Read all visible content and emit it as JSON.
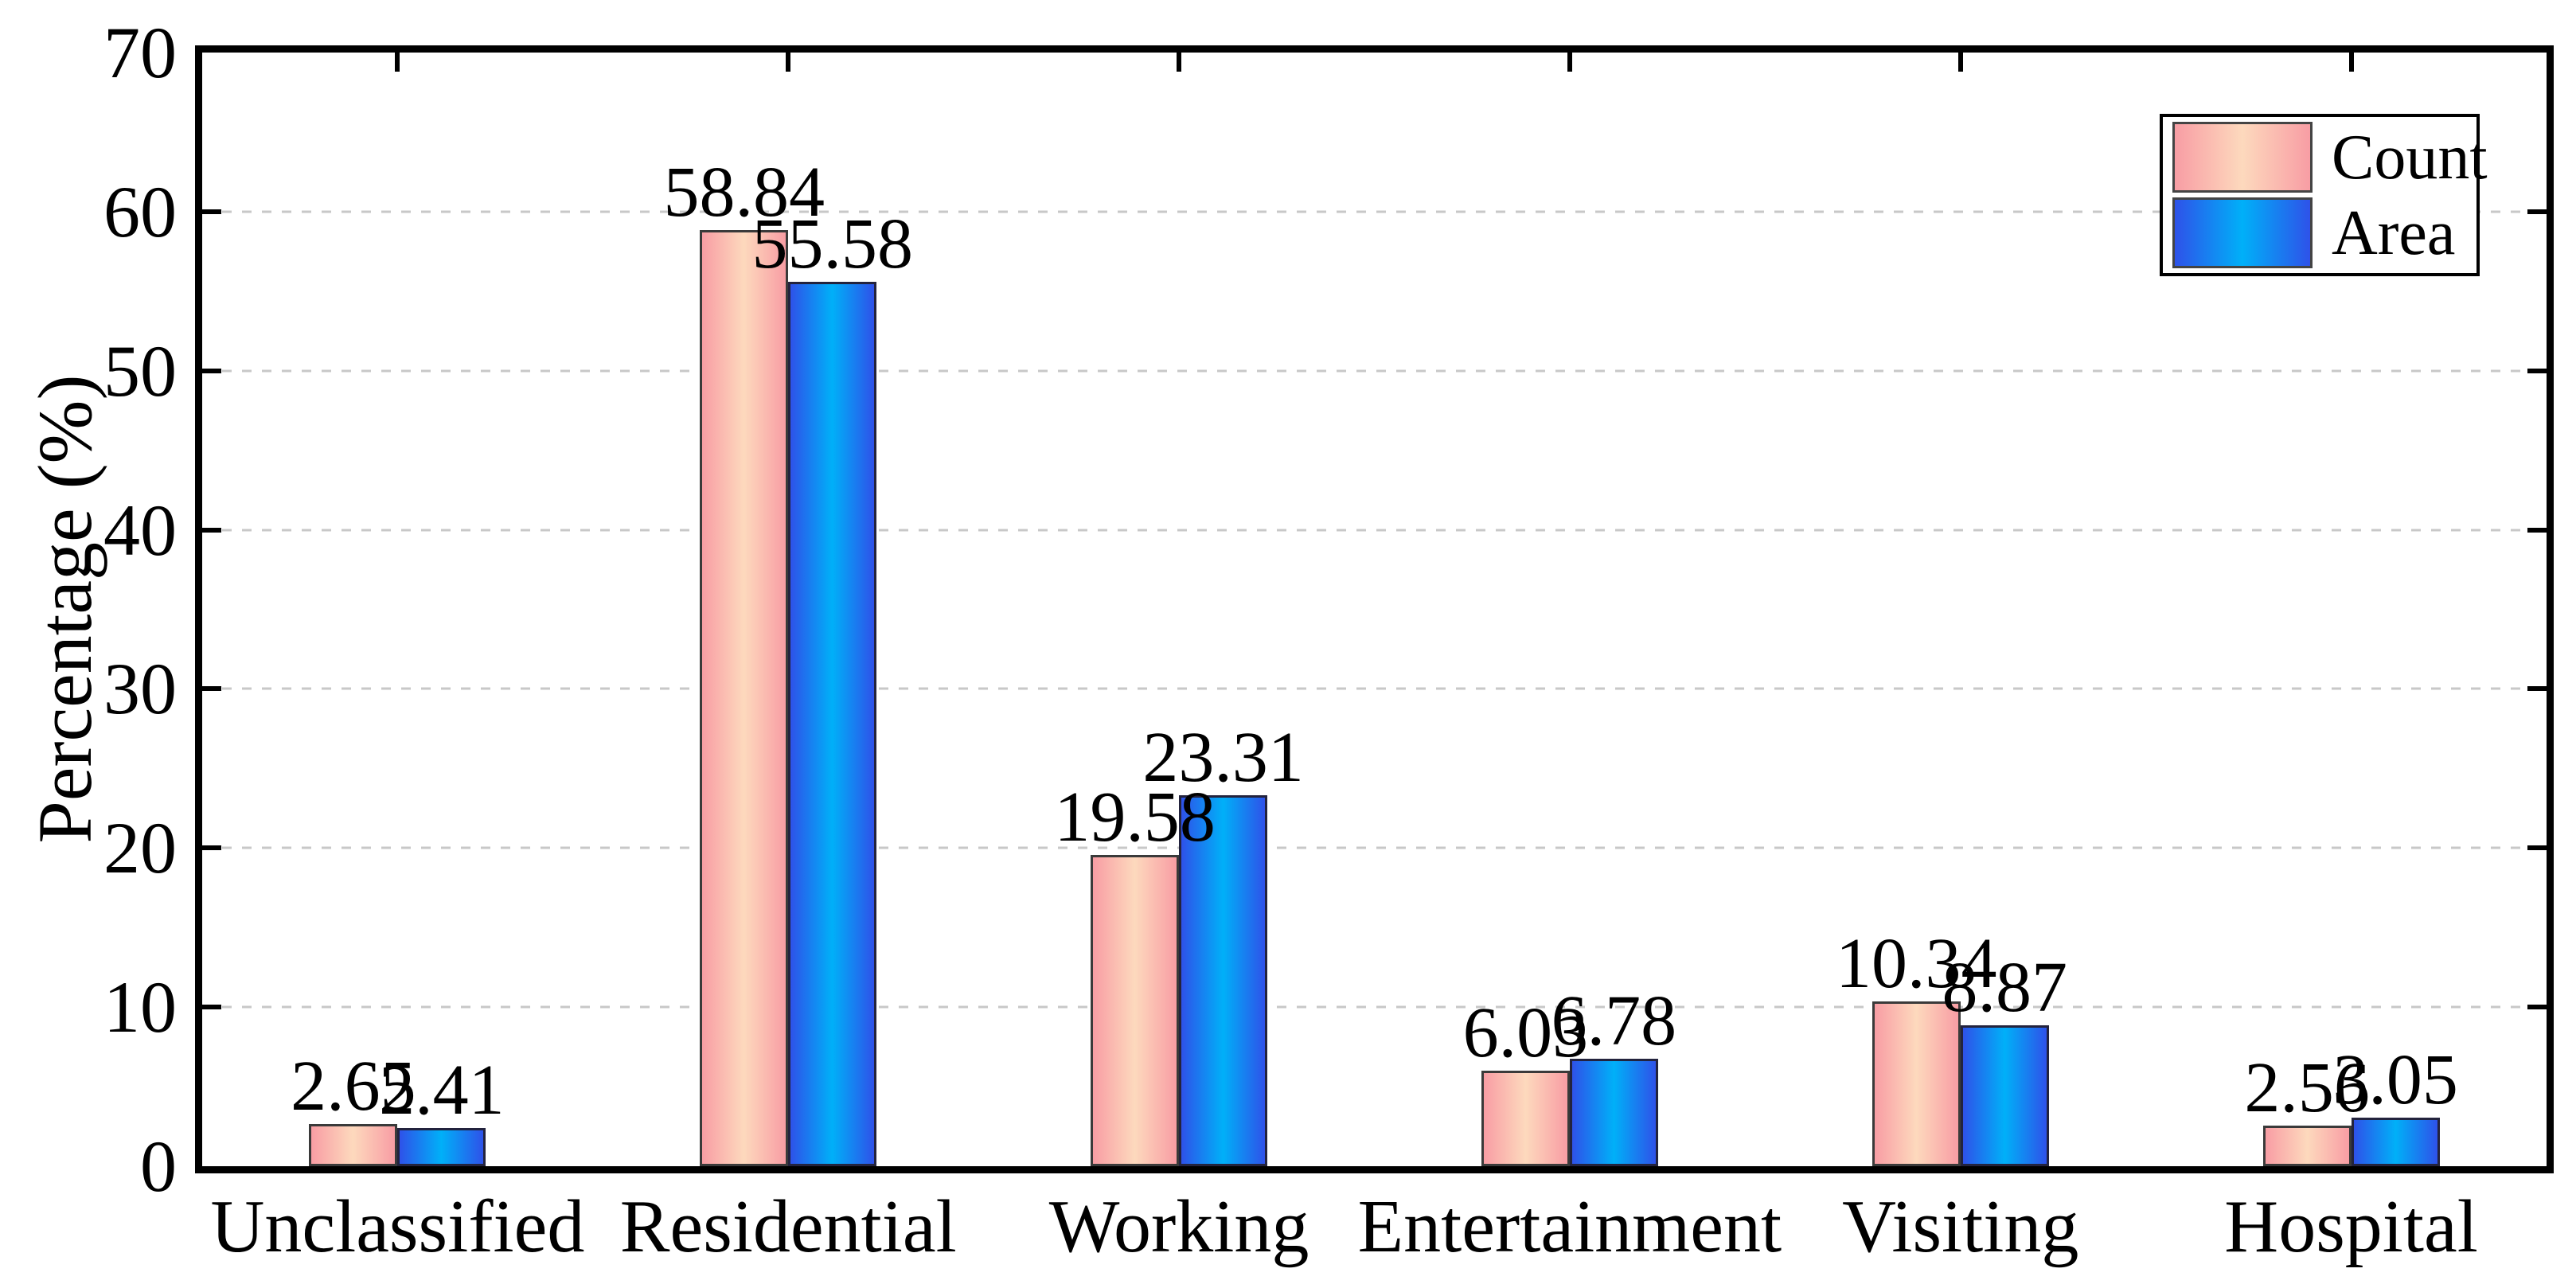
{
  "chart_data": {
    "type": "bar",
    "title": "",
    "categories": [
      "Unclassified",
      "Residential",
      "Working",
      "Entertainment",
      "Visiting",
      "Hospital"
    ],
    "series": [
      {
        "name": "Count",
        "values": [
          2.65,
          58.84,
          19.58,
          6.03,
          10.34,
          2.56
        ],
        "colors": {
          "edge": "#f89da4",
          "mid": "#fdd9bd",
          "border": "#3a3a3a"
        }
      },
      {
        "name": "Area",
        "values": [
          2.41,
          55.58,
          23.31,
          6.78,
          8.87,
          3.05
        ],
        "colors": {
          "edge": "#2e52e9",
          "mid": "#00b0f8",
          "border": "#23233d"
        }
      }
    ],
    "xlabel": "",
    "ylabel": "Percentage (%)",
    "ylim": [
      0,
      70
    ],
    "yticks": [
      0,
      10,
      20,
      30,
      40,
      50,
      60,
      70
    ],
    "value_label_decimals": 2,
    "grid": "horizontal dashed at 10-60",
    "legend_position": "top-right",
    "legend_entries": [
      "Count",
      "Area"
    ]
  },
  "colors": {
    "background": "#ffffff",
    "axis": "#000000",
    "gridline": "#c8c8c8",
    "text": "#000000"
  }
}
